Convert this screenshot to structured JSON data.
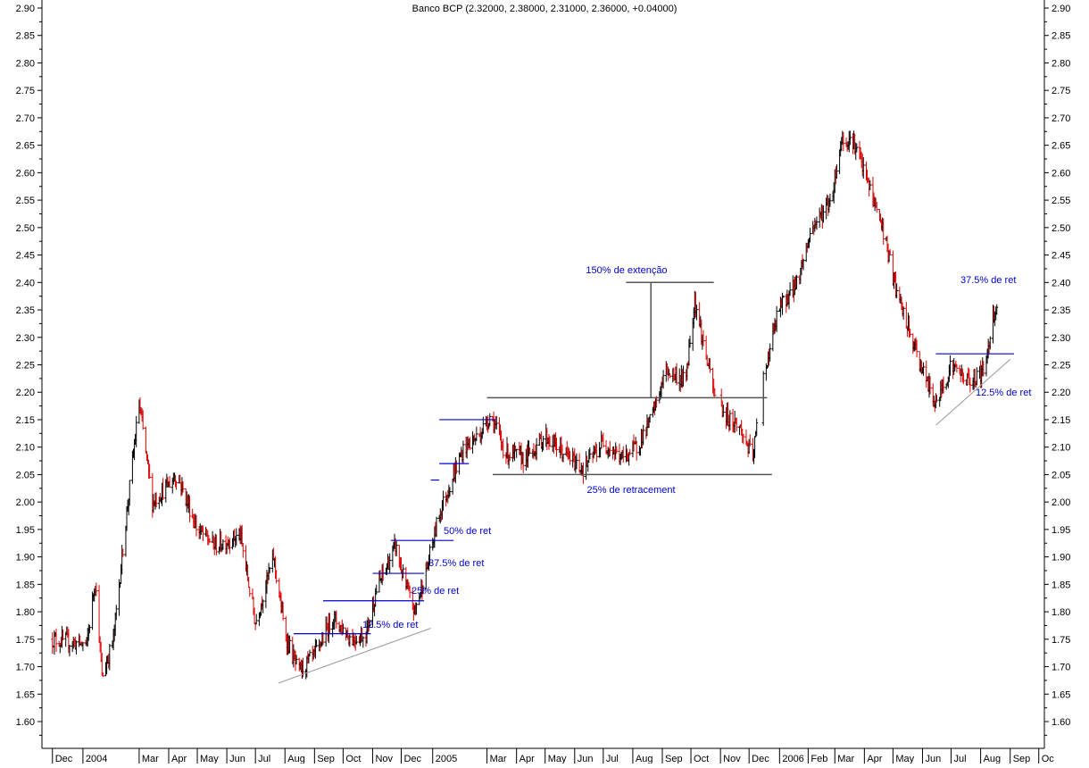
{
  "chart_data": {
    "type": "ohlc",
    "title": "Banco BCP (2.32000, 2.38000, 2.31000, 2.36000, +0.04000)",
    "ylim": [
      1.55,
      2.9
    ],
    "y_ticks": [
      "2.90",
      "2.85",
      "2.80",
      "2.75",
      "2.70",
      "2.65",
      "2.60",
      "2.55",
      "2.50",
      "2.45",
      "2.40",
      "2.35",
      "2.30",
      "2.25",
      "2.20",
      "2.15",
      "2.10",
      "2.05",
      "2.00",
      "1.95",
      "1.90",
      "1.85",
      "1.80",
      "1.75",
      "1.70",
      "1.65",
      "1.60"
    ],
    "x_ticks": [
      "Dec",
      "2004",
      "Mar",
      "Apr",
      "May",
      "Jun",
      "Jul",
      "Aug",
      "Sep",
      "Oct",
      "Nov",
      "Dec",
      "2005",
      "Mar",
      "Apr",
      "May",
      "Jun",
      "Jul",
      "Aug",
      "Sep",
      "Oct",
      "Nov",
      "Dec",
      "2006",
      "Feb",
      "Mar",
      "Apr",
      "May",
      "Jun",
      "Jul",
      "Aug",
      "Sep",
      "Oc"
    ],
    "grid": false,
    "colors": {
      "up": "#000000",
      "down": "#dd0000",
      "annotation": "#0000cc",
      "trendline": "#999999",
      "level": "#555555"
    },
    "price_path": [
      [
        "2003-12-01",
        1.75
      ],
      [
        "2004-01-06",
        1.74
      ],
      [
        "2004-01-15",
        1.86
      ],
      [
        "2004-01-22",
        1.68
      ],
      [
        "2004-02-03",
        1.75
      ],
      [
        "2004-02-15",
        1.95
      ],
      [
        "2004-03-01",
        2.18
      ],
      [
        "2004-03-15",
        2.0
      ],
      [
        "2004-04-10",
        2.05
      ],
      [
        "2004-05-01",
        1.95
      ],
      [
        "2004-05-20",
        1.92
      ],
      [
        "2004-06-15",
        1.94
      ],
      [
        "2004-07-01",
        1.78
      ],
      [
        "2004-07-20",
        1.9
      ],
      [
        "2004-08-01",
        1.76
      ],
      [
        "2004-08-15",
        1.69
      ],
      [
        "2004-09-01",
        1.72
      ],
      [
        "2004-09-20",
        1.79
      ],
      [
        "2004-10-10",
        1.75
      ],
      [
        "2004-10-25",
        1.76
      ],
      [
        "2004-11-05",
        1.84
      ],
      [
        "2004-11-25",
        1.92
      ],
      [
        "2004-12-05",
        1.85
      ],
      [
        "2004-12-15",
        1.8
      ],
      [
        "2004-12-28",
        1.88
      ],
      [
        "2005-01-10",
        1.98
      ],
      [
        "2005-01-25",
        2.05
      ],
      [
        "2005-02-05",
        2.1
      ],
      [
        "2005-02-20",
        2.12
      ],
      [
        "2005-03-05",
        2.16
      ],
      [
        "2005-03-20",
        2.09
      ],
      [
        "2005-04-10",
        2.08
      ],
      [
        "2005-05-01",
        2.12
      ],
      [
        "2005-05-20",
        2.09
      ],
      [
        "2005-06-10",
        2.06
      ],
      [
        "2005-07-01",
        2.11
      ],
      [
        "2005-07-20",
        2.08
      ],
      [
        "2005-08-05",
        2.1
      ],
      [
        "2005-08-20",
        2.15
      ],
      [
        "2005-09-05",
        2.24
      ],
      [
        "2005-09-25",
        2.22
      ],
      [
        "2005-10-05",
        2.37
      ],
      [
        "2005-10-15",
        2.28
      ],
      [
        "2005-10-25",
        2.2
      ],
      [
        "2005-11-05",
        2.16
      ],
      [
        "2005-11-20",
        2.14
      ],
      [
        "2005-12-05",
        2.08
      ],
      [
        "2005-12-15",
        2.22
      ],
      [
        "2006-01-01",
        2.35
      ],
      [
        "2006-01-20",
        2.4
      ],
      [
        "2006-02-05",
        2.5
      ],
      [
        "2006-02-25",
        2.55
      ],
      [
        "2006-03-08",
        2.66
      ],
      [
        "2006-03-20",
        2.66
      ],
      [
        "2006-04-05",
        2.58
      ],
      [
        "2006-04-20",
        2.5
      ],
      [
        "2006-05-05",
        2.38
      ],
      [
        "2006-05-20",
        2.3
      ],
      [
        "2006-06-05",
        2.22
      ],
      [
        "2006-06-15",
        2.18
      ],
      [
        "2006-07-01",
        2.25
      ],
      [
        "2006-07-20",
        2.22
      ],
      [
        "2006-08-05",
        2.24
      ],
      [
        "2006-08-14",
        2.34
      ],
      [
        "2006-08-18",
        2.36
      ]
    ],
    "levels": [
      {
        "from": "2005-03-01",
        "to": "2005-12-20",
        "y": 2.19
      },
      {
        "from": "2005-03-07",
        "to": "2005-12-25",
        "y": 2.05
      },
      {
        "from": "2005-07-25",
        "to": "2005-10-25",
        "y": 2.4
      }
    ],
    "vertical_markers": [
      {
        "x": "2005-08-20",
        "y0": 2.19,
        "y1": 2.4
      }
    ],
    "retracement_lines": [
      {
        "from": "2004-08-10",
        "to": "2004-10-30",
        "y": 1.76
      },
      {
        "from": "2004-09-10",
        "to": "2004-12-25",
        "y": 1.82
      },
      {
        "from": "2004-11-01",
        "to": "2004-12-25",
        "y": 1.87
      },
      {
        "from": "2004-11-20",
        "to": "2005-01-25",
        "y": 1.93
      },
      {
        "from": "2005-01-01",
        "to": "2005-01-10",
        "y": 2.04
      },
      {
        "from": "2005-01-10",
        "to": "2005-02-10",
        "y": 2.07
      },
      {
        "from": "2005-01-10",
        "to": "2005-03-10",
        "y": 2.15
      },
      {
        "from": "2006-06-15",
        "to": "2006-09-05",
        "y": 2.27
      }
    ],
    "trendlines": [
      {
        "from": [
          "2004-07-25",
          1.67
        ],
        "to": [
          "2005-01-01",
          1.77
        ]
      },
      {
        "from": [
          "2006-06-15",
          2.14
        ],
        "to": [
          "2006-09-01",
          2.26
        ]
      }
    ],
    "annotations": {
      "ext150": "150% de extenção",
      "ret25_2005": "25% de retracement",
      "ret50": "50% de ret",
      "ret375": "37.5% de ret",
      "ret25": "25% de ret",
      "ret125": "12.5% de ret",
      "ret375_2006": "37.5% de ret",
      "ret125_2006": "12.5% de ret"
    }
  }
}
